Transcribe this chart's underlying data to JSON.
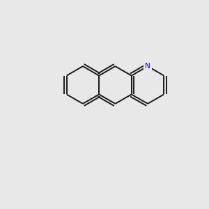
{
  "background_color": "#e8e8e8",
  "bond_color": "#1a1a1a",
  "N_color": "#0000ee",
  "O_color": "#dd0000",
  "lw": 1.4,
  "fontsize": 7.5
}
